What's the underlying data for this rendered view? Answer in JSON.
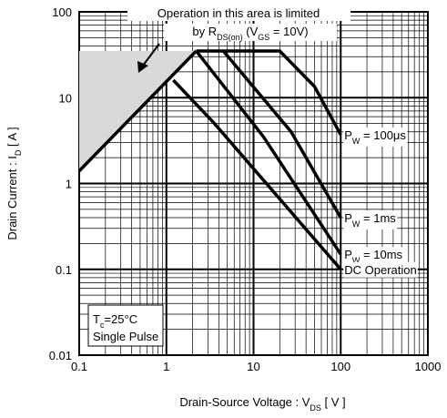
{
  "chart_data": {
    "type": "line",
    "xscale": "log",
    "yscale": "log",
    "xlim": [
      0.1,
      1000
    ],
    "ylim": [
      0.01,
      100
    ],
    "xticks": [
      0.1,
      1,
      10,
      100,
      1000
    ],
    "yticks": [
      0.01,
      0.1,
      1,
      10,
      100
    ],
    "grid": true,
    "minor_grid": true,
    "xlabel": [
      {
        "text": "Drain-Source  Voltage : V"
      },
      {
        "text": "DS",
        "sub": true
      },
      {
        "text": " [ V ]"
      }
    ],
    "ylabel": [
      {
        "text": "Drain  Current : I"
      },
      {
        "text": "D",
        "sub": true
      },
      {
        "text": " [ A ]"
      }
    ],
    "shaded_region": {
      "color": "#d9d9d9",
      "x": [
        0.1,
        2.2,
        0.1
      ],
      "values": [
        1.4,
        35,
        35
      ]
    },
    "annotation": [
      [
        {
          "text": "Operation in this area is limited"
        }
      ],
      [
        {
          "text": "by R"
        },
        {
          "text": "DS(on)",
          "sub": true
        },
        {
          "text": " (V"
        },
        {
          "text": "GS",
          "sub": true
        },
        {
          "text": " = 10V)"
        }
      ]
    ],
    "conditions": [
      [
        {
          "text": "T"
        },
        {
          "text": "c",
          "sub": true
        },
        {
          "text": "=25°C"
        }
      ],
      [
        {
          "text": "Single Pulse"
        }
      ]
    ],
    "series": [
      {
        "color": "#000000",
        "x": [
          0.1,
          2.2
        ],
        "values": [
          1.4,
          35
        ]
      },
      {
        "color": "#000000",
        "label": [
          {
            "text": "P"
          },
          {
            "text": "W",
            "sub": true
          },
          {
            "text": " = 100μs"
          }
        ],
        "x": [
          2.2,
          20,
          50,
          100
        ],
        "values": [
          35,
          35,
          13.5,
          3.7
        ]
      },
      {
        "color": "#000000",
        "label": [
          {
            "text": "P"
          },
          {
            "text": "W",
            "sub": true
          },
          {
            "text": " = 1ms"
          }
        ],
        "x": [
          4.5,
          27,
          100
        ],
        "values": [
          35,
          4,
          0.4
        ]
      },
      {
        "color": "#000000",
        "label": [
          {
            "text": "P"
          },
          {
            "text": "W",
            "sub": true
          },
          {
            "text": " = 10ms"
          }
        ],
        "x": [
          2.2,
          13,
          100
        ],
        "values": [
          35,
          3.5,
          0.15
        ]
      },
      {
        "color": "#000000",
        "label": [
          {
            "text": "DC Operation"
          }
        ],
        "x": [
          1.2,
          3.5,
          100
        ],
        "values": [
          16,
          5.1,
          0.1
        ]
      }
    ]
  }
}
